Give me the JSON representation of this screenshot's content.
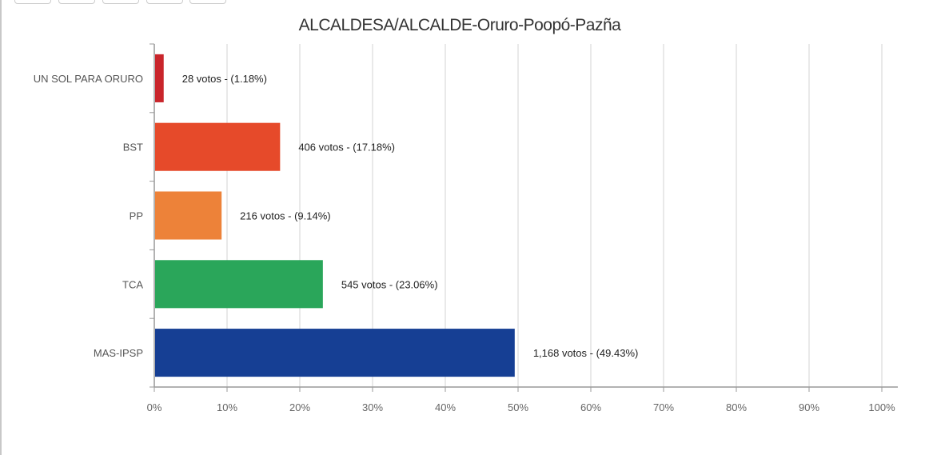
{
  "toolbar": {
    "buttons": [
      "",
      "",
      "",
      "",
      ""
    ]
  },
  "chart_data": {
    "type": "bar",
    "orientation": "horizontal",
    "title": "ALCALDESA/ALCALDE-Oruro-Poopó-Pazña",
    "categories": [
      "UN SOL PARA ORURO",
      "BST",
      "PP",
      "TCA",
      "MAS-IPSP"
    ],
    "values": [
      1.18,
      17.18,
      9.14,
      23.06,
      49.43
    ],
    "votes": [
      28,
      406,
      216,
      545,
      1168
    ],
    "data_labels": [
      "28 votos - (1.18%)",
      "406 votos - (17.18%)",
      "216 votos - (9.14%)",
      "545 votos - (23.06%)",
      "1,168 votos - (49.43%)"
    ],
    "colors": [
      "#c9252b",
      "#e64a2a",
      "#ed8239",
      "#2aa65a",
      "#163f94"
    ],
    "xlim": [
      0,
      100
    ],
    "xticks": [
      "0%",
      "10%",
      "20%",
      "30%",
      "40%",
      "50%",
      "60%",
      "70%",
      "80%",
      "90%",
      "100%"
    ],
    "xlabel": "",
    "ylabel": "",
    "grid": true,
    "legend": "none"
  }
}
